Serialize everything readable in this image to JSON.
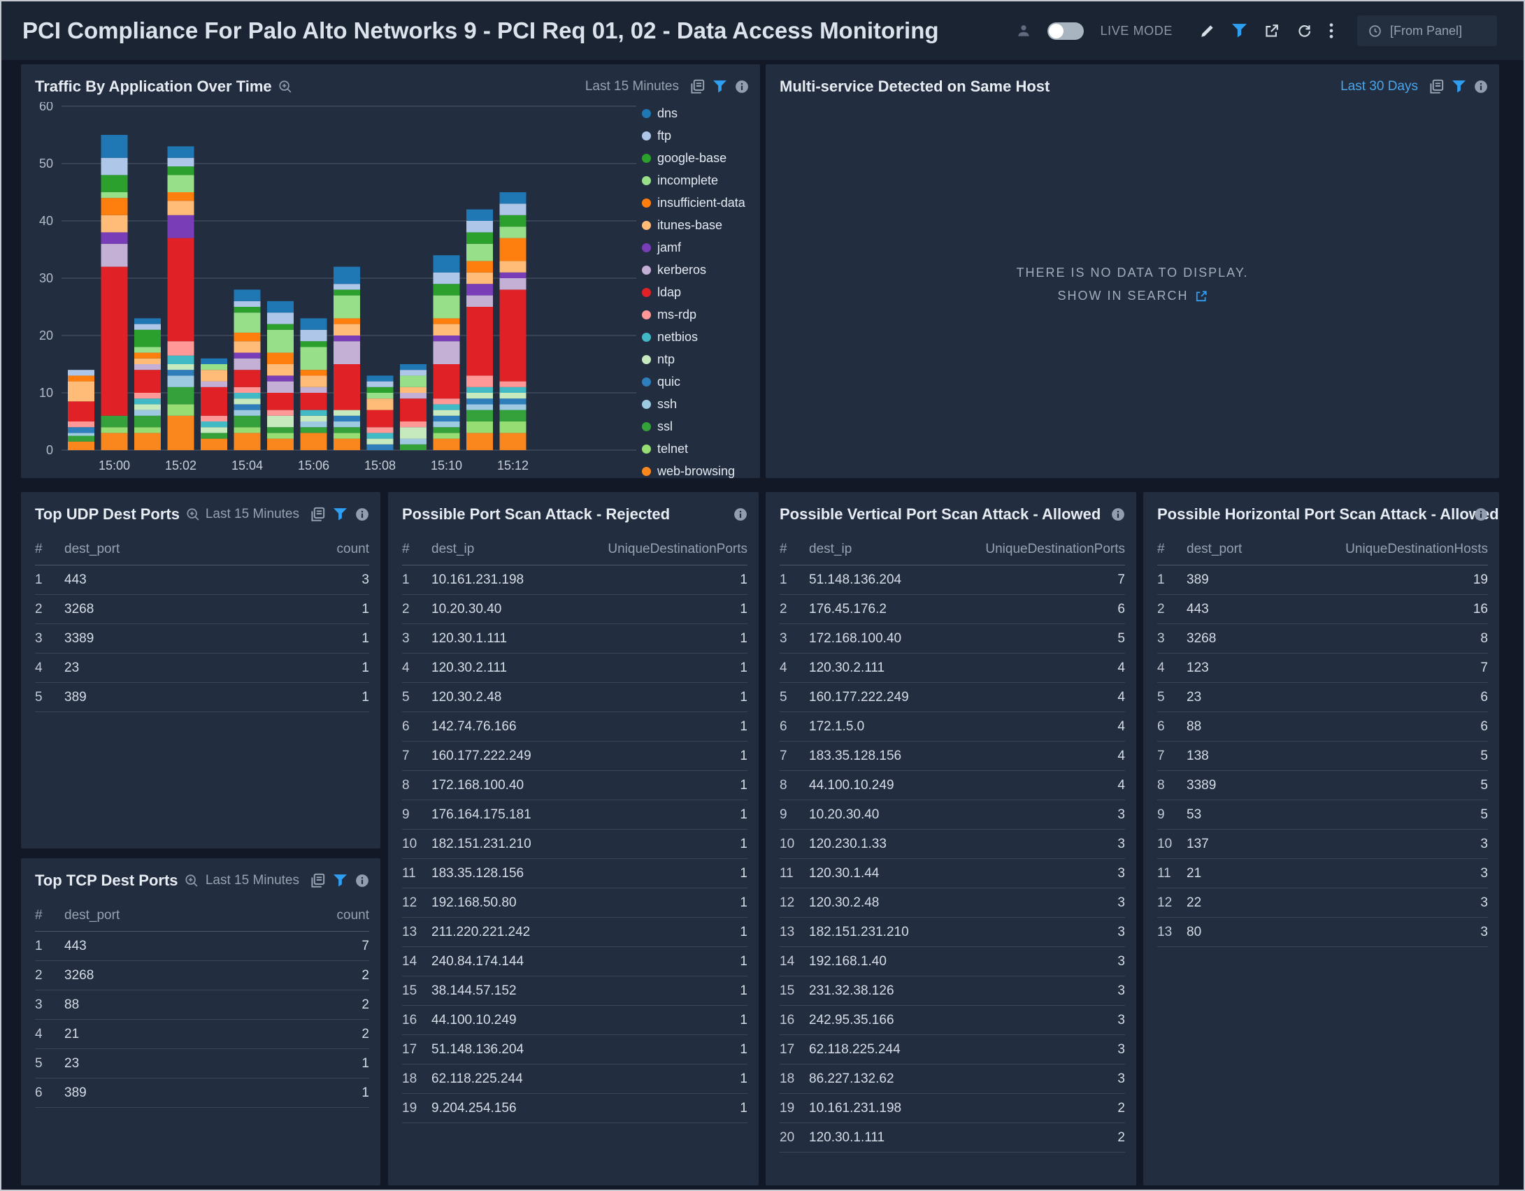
{
  "header": {
    "title": "PCI Compliance For Palo Alto Networks 9 - PCI Req 01, 02 - Data Access Monitoring",
    "live_mode_label": "LIVE MODE",
    "from_panel_value": "[From Panel]"
  },
  "panels": {
    "traffic": {
      "title": "Traffic By Application Over Time",
      "time_range": "Last 15 Minutes"
    },
    "multi_service": {
      "title": "Multi-service Detected on Same Host",
      "time_range": "Last 30 Days",
      "no_data_line1": "THERE IS NO DATA TO DISPLAY.",
      "no_data_line2": "SHOW IN SEARCH"
    },
    "top_udp": {
      "title": "Top UDP Dest Ports",
      "time_range": "Last 15 Minutes",
      "columns": [
        "#",
        "dest_port",
        "count"
      ],
      "rows": [
        [
          "1",
          "443",
          "3"
        ],
        [
          "2",
          "3268",
          "1"
        ],
        [
          "3",
          "3389",
          "1"
        ],
        [
          "4",
          "23",
          "1"
        ],
        [
          "5",
          "389",
          "1"
        ]
      ]
    },
    "top_tcp": {
      "title": "Top TCP Dest Ports",
      "time_range": "Last 15 Minutes",
      "columns": [
        "#",
        "dest_port",
        "count"
      ],
      "rows": [
        [
          "1",
          "443",
          "7"
        ],
        [
          "2",
          "3268",
          "2"
        ],
        [
          "3",
          "88",
          "2"
        ],
        [
          "4",
          "21",
          "2"
        ],
        [
          "5",
          "23",
          "1"
        ],
        [
          "6",
          "389",
          "1"
        ]
      ]
    },
    "rejected": {
      "title": "Possible Port Scan Attack - Rejected",
      "columns": [
        "#",
        "dest_ip",
        "UniqueDestinationPorts"
      ],
      "rows": [
        [
          "1",
          "10.161.231.198",
          "1"
        ],
        [
          "2",
          "10.20.30.40",
          "1"
        ],
        [
          "3",
          "120.30.1.111",
          "1"
        ],
        [
          "4",
          "120.30.2.111",
          "1"
        ],
        [
          "5",
          "120.30.2.48",
          "1"
        ],
        [
          "6",
          "142.74.76.166",
          "1"
        ],
        [
          "7",
          "160.177.222.249",
          "1"
        ],
        [
          "8",
          "172.168.100.40",
          "1"
        ],
        [
          "9",
          "176.164.175.181",
          "1"
        ],
        [
          "10",
          "182.151.231.210",
          "1"
        ],
        [
          "11",
          "183.35.128.156",
          "1"
        ],
        [
          "12",
          "192.168.50.80",
          "1"
        ],
        [
          "13",
          "211.220.221.242",
          "1"
        ],
        [
          "14",
          "240.84.174.144",
          "1"
        ],
        [
          "15",
          "38.144.57.152",
          "1"
        ],
        [
          "16",
          "44.100.10.249",
          "1"
        ],
        [
          "17",
          "51.148.136.204",
          "1"
        ],
        [
          "18",
          "62.118.225.244",
          "1"
        ],
        [
          "19",
          "9.204.254.156",
          "1"
        ]
      ]
    },
    "vertical": {
      "title": "Possible Vertical Port Scan Attack - Allowed",
      "columns": [
        "#",
        "dest_ip",
        "UniqueDestinationPorts"
      ],
      "rows": [
        [
          "1",
          "51.148.136.204",
          "7"
        ],
        [
          "2",
          "176.45.176.2",
          "6"
        ],
        [
          "3",
          "172.168.100.40",
          "5"
        ],
        [
          "4",
          "120.30.2.111",
          "4"
        ],
        [
          "5",
          "160.177.222.249",
          "4"
        ],
        [
          "6",
          "172.1.5.0",
          "4"
        ],
        [
          "7",
          "183.35.128.156",
          "4"
        ],
        [
          "8",
          "44.100.10.249",
          "4"
        ],
        [
          "9",
          "10.20.30.40",
          "3"
        ],
        [
          "10",
          "120.230.1.33",
          "3"
        ],
        [
          "11",
          "120.30.1.44",
          "3"
        ],
        [
          "12",
          "120.30.2.48",
          "3"
        ],
        [
          "13",
          "182.151.231.210",
          "3"
        ],
        [
          "14",
          "192.168.1.40",
          "3"
        ],
        [
          "15",
          "231.32.38.126",
          "3"
        ],
        [
          "16",
          "242.95.35.166",
          "3"
        ],
        [
          "17",
          "62.118.225.244",
          "3"
        ],
        [
          "18",
          "86.227.132.62",
          "3"
        ],
        [
          "19",
          "10.161.231.198",
          "2"
        ],
        [
          "20",
          "120.30.1.111",
          "2"
        ]
      ]
    },
    "horizontal": {
      "title": "Possible Horizontal Port Scan Attack - Allowed",
      "columns": [
        "#",
        "dest_port",
        "UniqueDestinationHosts"
      ],
      "rows": [
        [
          "1",
          "389",
          "19"
        ],
        [
          "2",
          "443",
          "16"
        ],
        [
          "3",
          "3268",
          "8"
        ],
        [
          "4",
          "123",
          "7"
        ],
        [
          "5",
          "23",
          "6"
        ],
        [
          "6",
          "88",
          "6"
        ],
        [
          "7",
          "138",
          "5"
        ],
        [
          "8",
          "3389",
          "5"
        ],
        [
          "9",
          "53",
          "5"
        ],
        [
          "10",
          "137",
          "3"
        ],
        [
          "11",
          "21",
          "3"
        ],
        [
          "12",
          "22",
          "3"
        ],
        [
          "13",
          "80",
          "3"
        ]
      ]
    }
  },
  "chart_data": {
    "type": "bar",
    "stacked": true,
    "title": "Traffic By Application Over Time",
    "xlabel": "",
    "ylabel": "",
    "ylim": [
      0,
      60
    ],
    "yticks": [
      0,
      10,
      20,
      30,
      40,
      50,
      60
    ],
    "grid": true,
    "legend_position": "right",
    "series": [
      {
        "name": "dns",
        "color": "#1f77b4"
      },
      {
        "name": "ftp",
        "color": "#aec7e8"
      },
      {
        "name": "google-base",
        "color": "#2ca02c"
      },
      {
        "name": "incomplete",
        "color": "#98df8a"
      },
      {
        "name": "insufficient-data",
        "color": "#ff7f0e"
      },
      {
        "name": "itunes-base",
        "color": "#ffbb78"
      },
      {
        "name": "jamf",
        "color": "#7a3db8"
      },
      {
        "name": "kerberos",
        "color": "#c5b0d5"
      },
      {
        "name": "ldap",
        "color": "#e02126"
      },
      {
        "name": "ms-rdp",
        "color": "#ff9896"
      },
      {
        "name": "netbios",
        "color": "#41bac6"
      },
      {
        "name": "ntp",
        "color": "#c6e9bd"
      },
      {
        "name": "quic",
        "color": "#2e7ebc"
      },
      {
        "name": "ssh",
        "color": "#9ecae1"
      },
      {
        "name": "ssl",
        "color": "#35a13a"
      },
      {
        "name": "telnet",
        "color": "#96dd73"
      },
      {
        "name": "web-browsing",
        "color": "#f9871e"
      }
    ],
    "series_order_bottom_to_top": [
      "web-browsing",
      "telnet",
      "ssl",
      "ssh",
      "quic",
      "ntp",
      "netbios",
      "ms-rdp",
      "ldap",
      "kerberos",
      "jamf",
      "itunes-base",
      "insufficient-data",
      "incomplete",
      "google-base",
      "ftp",
      "dns"
    ],
    "bars": [
      {
        "t": "14:59",
        "tick": "",
        "total": 14,
        "segments": {
          "web-browsing": 1.5,
          "ssl": 1,
          "ssh": 0.5,
          "quic": 1,
          "ldap": 3.5,
          "ms-rdp": 1,
          "itunes-base": 3.5,
          "insufficient-data": 1,
          "ftp": 1
        }
      },
      {
        "t": "15:00",
        "tick": "15:00",
        "total": 55,
        "segments": {
          "web-browsing": 3,
          "telnet": 1,
          "ssl": 2,
          "ldap": 26,
          "kerberos": 4,
          "jamf": 2,
          "itunes-base": 3,
          "insufficient-data": 3,
          "incomplete": 1,
          "google-base": 3,
          "ftp": 3,
          "dns": 4
        }
      },
      {
        "t": "15:01",
        "tick": "",
        "total": 23,
        "segments": {
          "web-browsing": 3,
          "telnet": 1,
          "ssl": 2,
          "ssh": 1,
          "ntp": 1,
          "netbios": 1,
          "ms-rdp": 1,
          "ldap": 4,
          "kerberos": 1,
          "itunes-base": 1,
          "insufficient-data": 1,
          "incomplete": 1,
          "google-base": 3,
          "ftp": 1,
          "dns": 1
        }
      },
      {
        "t": "15:02",
        "tick": "15:02",
        "total": 53,
        "segments": {
          "web-browsing": 6,
          "telnet": 2,
          "ssl": 3,
          "ssh": 2,
          "quic": 1,
          "ntp": 1,
          "netbios": 1.5,
          "ms-rdp": 2.5,
          "ldap": 18,
          "jamf": 4,
          "itunes-base": 2.5,
          "insufficient-data": 1.5,
          "incomplete": 3,
          "google-base": 1.5,
          "ftp": 1.5,
          "dns": 2
        }
      },
      {
        "t": "15:03",
        "tick": "",
        "total": 16,
        "segments": {
          "web-browsing": 2,
          "ssl": 1,
          "ntp": 1,
          "netbios": 1,
          "ms-rdp": 1,
          "ldap": 5,
          "kerberos": 1,
          "itunes-base": 2,
          "incomplete": 1,
          "dns": 1
        }
      },
      {
        "t": "15:04",
        "tick": "15:04",
        "total": 28,
        "segments": {
          "web-browsing": 3,
          "telnet": 1,
          "ssl": 2,
          "ssh": 1,
          "quic": 1,
          "ntp": 1,
          "netbios": 1,
          "ms-rdp": 1,
          "ldap": 3,
          "kerberos": 2,
          "jamf": 1,
          "itunes-base": 2,
          "insufficient-data": 1.5,
          "incomplete": 3.5,
          "google-base": 1,
          "ftp": 1,
          "dns": 2
        }
      },
      {
        "t": "15:05",
        "tick": "",
        "total": 26,
        "segments": {
          "web-browsing": 2,
          "telnet": 1,
          "ssl": 1,
          "ntp": 2,
          "ms-rdp": 1,
          "ldap": 3,
          "kerberos": 2,
          "jamf": 1,
          "itunes-base": 2,
          "insufficient-data": 2,
          "incomplete": 4,
          "google-base": 1,
          "ftp": 2,
          "dns": 2
        }
      },
      {
        "t": "15:06",
        "tick": "15:06",
        "total": 23,
        "segments": {
          "web-browsing": 3,
          "ssl": 1,
          "ssh": 1,
          "ntp": 1,
          "netbios": 1,
          "ldap": 3,
          "kerberos": 1,
          "itunes-base": 2,
          "insufficient-data": 1,
          "incomplete": 4,
          "google-base": 1,
          "ftp": 2,
          "dns": 2
        }
      },
      {
        "t": "15:07",
        "tick": "",
        "total": 32,
        "segments": {
          "web-browsing": 2,
          "telnet": 1,
          "ssl": 1,
          "ssh": 1,
          "quic": 1,
          "ntp": 1,
          "ldap": 8,
          "kerberos": 4,
          "jamf": 1,
          "itunes-base": 2,
          "insufficient-data": 1,
          "incomplete": 4,
          "google-base": 1,
          "ftp": 1,
          "dns": 3
        }
      },
      {
        "t": "15:08",
        "tick": "15:08",
        "total": 13,
        "segments": {
          "quic": 1,
          "ntp": 1,
          "netbios": 1,
          "ms-rdp": 1,
          "ldap": 3,
          "itunes-base": 2,
          "incomplete": 1,
          "google-base": 1,
          "ftp": 1,
          "dns": 1
        }
      },
      {
        "t": "15:09",
        "tick": "",
        "total": 15,
        "segments": {
          "ssl": 1,
          "ssh": 1,
          "ntp": 2,
          "ms-rdp": 1,
          "ldap": 4,
          "kerberos": 1,
          "itunes-base": 1,
          "incomplete": 2,
          "ftp": 1,
          "dns": 1
        }
      },
      {
        "t": "15:10",
        "tick": "15:10",
        "total": 34,
        "segments": {
          "web-browsing": 2,
          "telnet": 1,
          "ssl": 1,
          "ssh": 1,
          "quic": 1,
          "ntp": 1,
          "netbios": 1,
          "ms-rdp": 1,
          "ldap": 6,
          "kerberos": 4,
          "jamf": 1,
          "itunes-base": 2,
          "insufficient-data": 1,
          "incomplete": 4,
          "google-base": 2,
          "ftp": 2,
          "dns": 3
        }
      },
      {
        "t": "15:11",
        "tick": "",
        "total": 42,
        "segments": {
          "web-browsing": 3,
          "telnet": 2,
          "ssl": 2,
          "ssh": 1,
          "quic": 1,
          "ntp": 1,
          "netbios": 1,
          "ms-rdp": 2,
          "ldap": 12,
          "kerberos": 2,
          "jamf": 2,
          "itunes-base": 2,
          "insufficient-data": 2,
          "incomplete": 3,
          "google-base": 2,
          "ftp": 2,
          "dns": 2
        }
      },
      {
        "t": "15:12",
        "tick": "15:12",
        "total": 45,
        "segments": {
          "web-browsing": 3,
          "telnet": 2,
          "ssl": 2,
          "ssh": 1,
          "quic": 1,
          "ntp": 1,
          "netbios": 1,
          "ms-rdp": 1,
          "ldap": 16,
          "kerberos": 2,
          "jamf": 1,
          "itunes-base": 2,
          "insufficient-data": 4,
          "incomplete": 2,
          "google-base": 2,
          "ftp": 2,
          "dns": 2
        }
      }
    ]
  }
}
